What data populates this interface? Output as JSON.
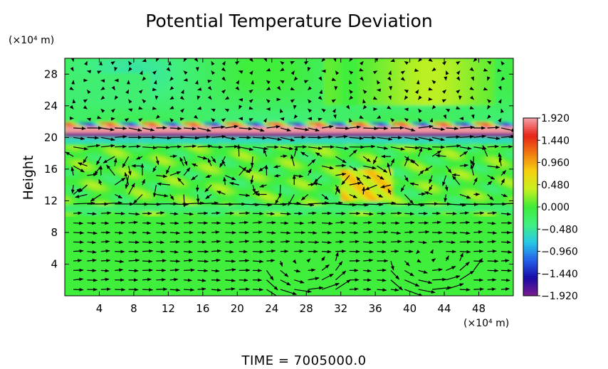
{
  "chart_data": {
    "type": "heatmap",
    "title": "Potential Temperature Deviation",
    "ylabel": "Height",
    "y_unit": "(×10⁴ m)",
    "x_unit": "(×10⁴ m)",
    "footer": "TIME = 7005000.0",
    "xlim": [
      0,
      52
    ],
    "ylim": [
      0,
      30
    ],
    "x_ticks": [
      4,
      8,
      12,
      16,
      20,
      24,
      28,
      32,
      36,
      40,
      44,
      48
    ],
    "y_ticks": [
      4,
      8,
      12,
      16,
      20,
      24,
      28
    ],
    "colorbar": {
      "min": -1.92,
      "max": 1.92,
      "tick_labels": [
        "1.920",
        "1.440",
        "0.960",
        "0.480",
        "0.000",
        "−0.480",
        "−0.960",
        "−1.440",
        "−1.920"
      ],
      "tick_values": [
        1.92,
        1.44,
        0.96,
        0.48,
        0.0,
        -0.48,
        -0.96,
        -1.44,
        -1.92
      ],
      "colormap": [
        "#7a1c8e",
        "#1a0aa8",
        "#2460e8",
        "#28c8e8",
        "#40f080",
        "#40ec3a",
        "#c8f020",
        "#f6d010",
        "#f07a10",
        "#e82418",
        "#f4a0a8"
      ]
    },
    "field_description": {
      "background_value": 0.0,
      "inversion_band_y": [
        19,
        22
      ],
      "inversion_band_range": [
        -1.92,
        1.92
      ],
      "upper_layer_y": [
        22,
        30
      ],
      "upper_layer_value": -0.25,
      "mid_layer_y": [
        10,
        19
      ],
      "mid_layer_range": [
        -0.5,
        0.8
      ]
    },
    "vectors": {
      "description": "wind arrows on a regular grid",
      "x_spacing": 1.6,
      "y_spacing": 1.2,
      "strong_layer_y": [
        10.5,
        12.5
      ],
      "strong_layer_direction": "east",
      "vortex_centers": [
        [
          27.5,
          2.5
        ],
        [
          42,
          3
        ]
      ]
    }
  }
}
